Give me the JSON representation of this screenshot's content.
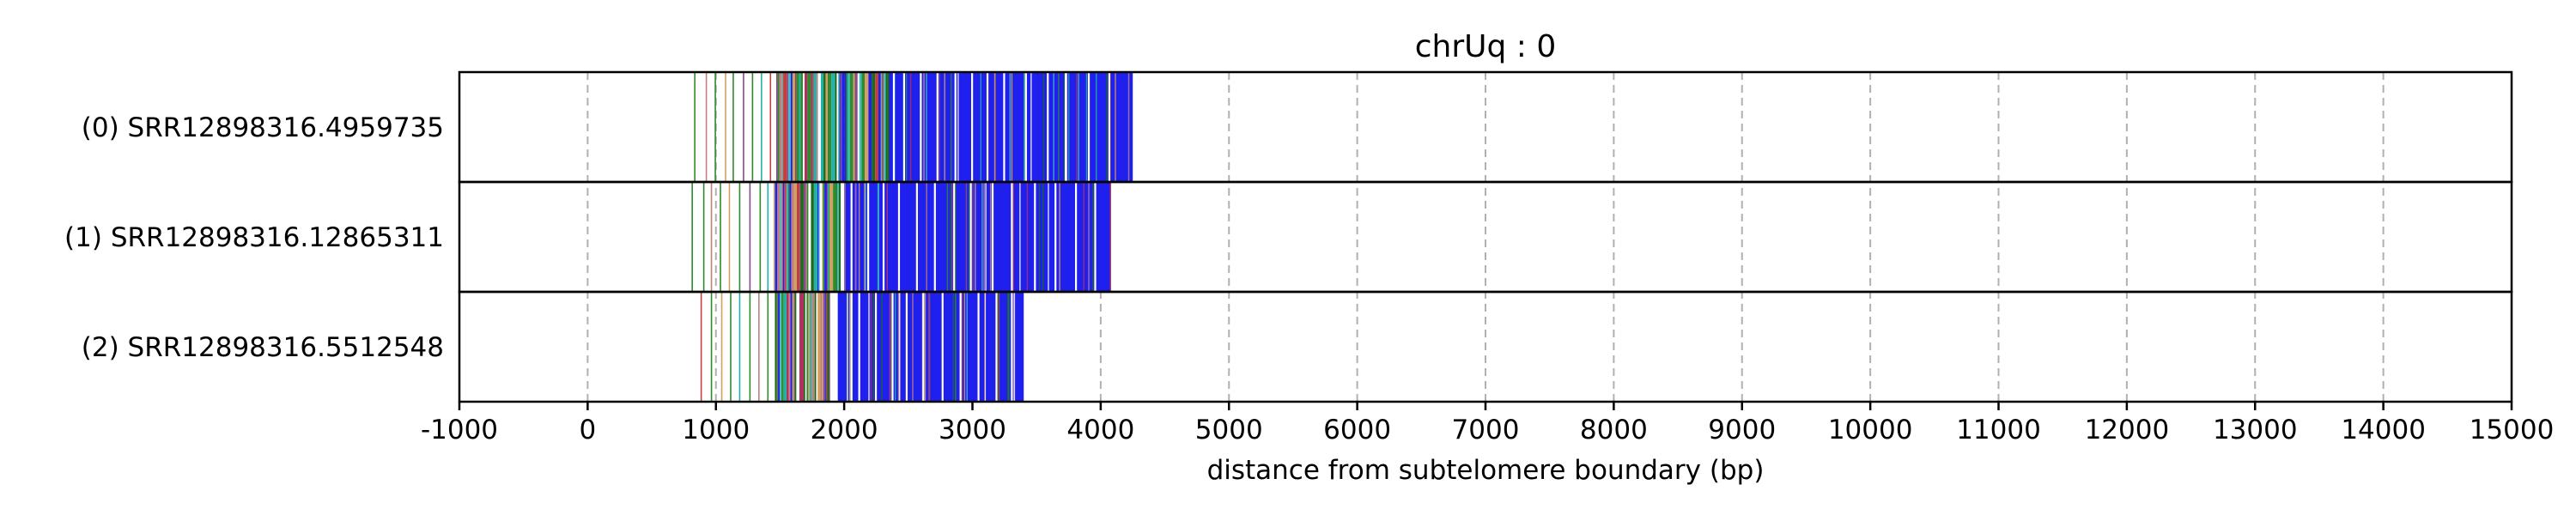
{
  "chart_data": {
    "type": "read-track",
    "title": "chrUq : 0",
    "xlabel": "distance from subtelomere boundary (bp)",
    "xlim": [
      -1000,
      15000
    ],
    "xticks": [
      -1000,
      0,
      1000,
      2000,
      3000,
      4000,
      5000,
      6000,
      7000,
      8000,
      9000,
      10000,
      11000,
      12000,
      13000,
      14000,
      15000
    ],
    "grid": "vertical dashed",
    "rows": [
      {
        "label": "(0) SRR12898316.4959735",
        "end": 4250,
        "sparse": [
          {
            "x": 830,
            "color": "#2e8b2e"
          },
          {
            "x": 920,
            "color": "#c08080"
          },
          {
            "x": 990,
            "color": "#2e8b2e"
          },
          {
            "x": 1070,
            "color": "#d2a060"
          },
          {
            "x": 1130,
            "color": "#2e8b2e"
          },
          {
            "x": 1210,
            "color": "#8a4a8a"
          },
          {
            "x": 1280,
            "color": "#2e8b2e"
          },
          {
            "x": 1350,
            "color": "#20b2aa"
          },
          {
            "x": 1420,
            "color": "#c04040"
          }
        ],
        "dense_start": 1470,
        "blue_start": 2350,
        "white_gaps": [
          2380,
          2460,
          2590,
          2720,
          2860,
          2990,
          3110,
          3240,
          3410,
          3580,
          3720,
          3900,
          4060
        ],
        "seed": 11
      },
      {
        "label": "(1) SRR12898316.12865311",
        "end": 4080,
        "sparse": [
          {
            "x": 810,
            "color": "#2e8b2e"
          },
          {
            "x": 900,
            "color": "#2e8b2e"
          },
          {
            "x": 960,
            "color": "#c08080"
          },
          {
            "x": 1030,
            "color": "#2e8b2e"
          },
          {
            "x": 1100,
            "color": "#d2a060"
          },
          {
            "x": 1180,
            "color": "#2e8b2e"
          },
          {
            "x": 1260,
            "color": "#8a4a8a"
          },
          {
            "x": 1340,
            "color": "#2e8b2e"
          },
          {
            "x": 1400,
            "color": "#20b2aa"
          }
        ],
        "dense_start": 1450,
        "blue_start": 2000,
        "white_gaps": [
          2050,
          2180,
          2300,
          2420,
          2560,
          2700,
          2850,
          2980,
          3150,
          3300,
          3480,
          3640,
          3800,
          3950
        ],
        "seed": 23
      },
      {
        "label": "(2) SRR12898316.5512548",
        "end": 3400,
        "sparse": [
          {
            "x": 880,
            "color": "#c04040"
          },
          {
            "x": 960,
            "color": "#2e8b2e"
          },
          {
            "x": 1040,
            "color": "#d2a060"
          },
          {
            "x": 1110,
            "color": "#2e8b2e"
          },
          {
            "x": 1180,
            "color": "#20b2aa"
          },
          {
            "x": 1260,
            "color": "#2e8b2e"
          },
          {
            "x": 1330,
            "color": "#c08080"
          },
          {
            "x": 1400,
            "color": "#2e8b2e"
          }
        ],
        "dense_start": 1460,
        "blue_start": 1950,
        "white_gaps": [
          2050,
          2110,
          2240,
          2370,
          2480,
          2610,
          2760,
          2900,
          3040,
          3180,
          3300
        ],
        "seed": 37
      }
    ],
    "colors": {
      "blue": "#2020ee",
      "dense_palette": [
        "#2e8b2e",
        "#20b2aa",
        "#c04040",
        "#8a4a8a",
        "#d2a060",
        "#2020ee",
        "#1a6b1a",
        "#40c0c0",
        "#b03060",
        "#c08080",
        "#ffffff"
      ]
    }
  }
}
